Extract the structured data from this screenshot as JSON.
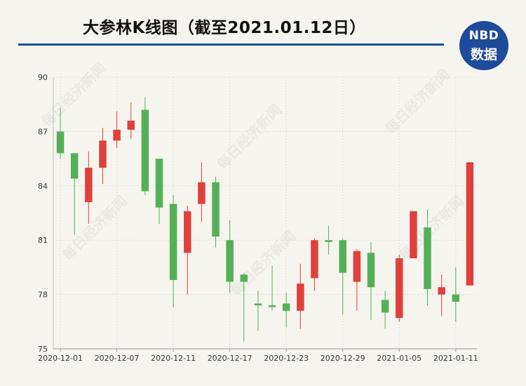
{
  "header": {
    "title": "大参林K线图（截至2021.01.12日）",
    "logo_top": "NBD",
    "logo_bottom": "数据"
  },
  "colors": {
    "rise": "#e0403a",
    "fall": "#54b056",
    "brand": "#1e4b9b",
    "grid": "#c8c8c8",
    "background": "#f6f4ef"
  },
  "watermark_text": "每日经济新闻",
  "chart_data": {
    "type": "candlestick",
    "title": "大参林K线图（截至2021.01.12日）",
    "ylim": [
      75,
      90
    ],
    "yticks": [
      75,
      78,
      81,
      84,
      87,
      90
    ],
    "xtick_labels": [
      "2020-12-01",
      "2020-12-07",
      "2020-12-11",
      "2020-12-17",
      "2020-12-23",
      "2020-12-29",
      "2021-01-05",
      "2021-01-11"
    ],
    "xtick_indices": [
      0,
      4,
      8,
      12,
      16,
      20,
      24,
      28
    ],
    "grid": true,
    "candles": [
      {
        "date": "2020-12-01",
        "open": 87.0,
        "close": 85.8,
        "high": 88.3,
        "low": 85.5
      },
      {
        "date": "2020-12-02",
        "open": 85.8,
        "close": 84.4,
        "high": 85.8,
        "low": 81.3
      },
      {
        "date": "2020-12-03",
        "open": 83.1,
        "close": 85.0,
        "high": 85.9,
        "low": 81.9
      },
      {
        "date": "2020-12-04",
        "open": 85.0,
        "close": 86.5,
        "high": 87.2,
        "low": 84.1
      },
      {
        "date": "2020-12-07",
        "open": 86.5,
        "close": 87.1,
        "high": 88.1,
        "low": 86.1
      },
      {
        "date": "2020-12-08",
        "open": 87.1,
        "close": 87.6,
        "high": 88.6,
        "low": 86.6
      },
      {
        "date": "2020-12-09",
        "open": 88.2,
        "close": 83.7,
        "high": 88.9,
        "low": 83.5
      },
      {
        "date": "2020-12-10",
        "open": 85.5,
        "close": 82.8,
        "high": 85.5,
        "low": 81.9
      },
      {
        "date": "2020-12-11",
        "open": 83.0,
        "close": 78.8,
        "high": 83.5,
        "low": 77.3
      },
      {
        "date": "2020-12-14",
        "open": 80.3,
        "close": 82.6,
        "high": 82.9,
        "low": 78.0
      },
      {
        "date": "2020-12-15",
        "open": 83.0,
        "close": 84.2,
        "high": 85.3,
        "low": 82.0
      },
      {
        "date": "2020-12-16",
        "open": 84.2,
        "close": 81.2,
        "high": 84.5,
        "low": 80.6
      },
      {
        "date": "2020-12-17",
        "open": 81.0,
        "close": 78.7,
        "high": 82.1,
        "low": 78.1
      },
      {
        "date": "2020-12-18",
        "open": 79.1,
        "close": 78.7,
        "high": 79.2,
        "low": 75.4
      },
      {
        "date": "2020-12-21",
        "open": 77.5,
        "close": 77.4,
        "high": 78.2,
        "low": 76.0
      },
      {
        "date": "2020-12-22",
        "open": 77.4,
        "close": 77.3,
        "high": 79.6,
        "low": 77.1
      },
      {
        "date": "2020-12-23",
        "open": 77.5,
        "close": 77.1,
        "high": 78.1,
        "low": 76.2
      },
      {
        "date": "2020-12-24",
        "open": 77.1,
        "close": 78.6,
        "high": 79.7,
        "low": 76.1
      },
      {
        "date": "2020-12-25",
        "open": 78.9,
        "close": 81.0,
        "high": 81.1,
        "low": 78.2
      },
      {
        "date": "2020-12-28",
        "open": 81.0,
        "close": 80.9,
        "high": 81.8,
        "low": 80.2
      },
      {
        "date": "2020-12-29",
        "open": 81.0,
        "close": 79.2,
        "high": 81.1,
        "low": 76.9
      },
      {
        "date": "2020-12-30",
        "open": 78.7,
        "close": 80.4,
        "high": 80.5,
        "low": 77.1
      },
      {
        "date": "2020-12-31",
        "open": 80.3,
        "close": 78.4,
        "high": 80.9,
        "low": 76.6
      },
      {
        "date": "2021-01-04",
        "open": 77.7,
        "close": 77.0,
        "high": 78.2,
        "low": 76.1
      },
      {
        "date": "2021-01-05",
        "open": 76.7,
        "close": 80.0,
        "high": 80.2,
        "low": 76.5
      },
      {
        "date": "2021-01-06",
        "open": 80.0,
        "close": 82.6,
        "high": 82.6,
        "low": 80.0
      },
      {
        "date": "2021-01-07",
        "open": 81.7,
        "close": 78.3,
        "high": 82.7,
        "low": 77.4
      },
      {
        "date": "2021-01-08",
        "open": 78.0,
        "close": 78.4,
        "high": 79.1,
        "low": 76.8
      },
      {
        "date": "2021-01-11",
        "open": 78.0,
        "close": 77.6,
        "high": 79.5,
        "low": 76.5
      },
      {
        "date": "2021-01-12",
        "open": 78.5,
        "close": 85.3,
        "high": 85.3,
        "low": 78.5
      }
    ]
  }
}
